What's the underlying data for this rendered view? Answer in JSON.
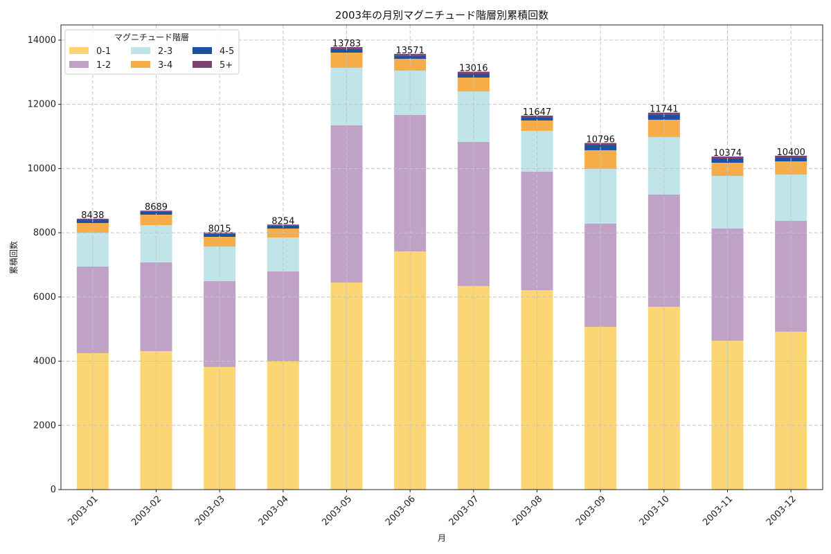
{
  "chart_data": {
    "type": "bar",
    "stacked": true,
    "title": "2003年の月別マグニチュード階層別累積回数",
    "xlabel": "月",
    "ylabel": "累積回数",
    "ylim": [
      0,
      14473
    ],
    "yticks": [
      0,
      2000,
      4000,
      6000,
      8000,
      10000,
      12000,
      14000
    ],
    "grid": true,
    "legend": {
      "title": "マグニチュード階層",
      "placement": "top-left",
      "columns": 3
    },
    "categories": [
      "2003-01",
      "2003-02",
      "2003-03",
      "2003-04",
      "2003-05",
      "2003-06",
      "2003-07",
      "2003-08",
      "2003-09",
      "2003-10",
      "2003-11",
      "2003-12"
    ],
    "series": [
      {
        "name": "0-1",
        "color": "#FCD575",
        "values": [
          4250,
          4310,
          3820,
          3990,
          6450,
          7420,
          6342,
          6212,
          5070,
          5695,
          4638,
          4918
        ]
      },
      {
        "name": "1-2",
        "color": "#C0A2C7",
        "values": [
          2695,
          2765,
          2673,
          2805,
          4896,
          4250,
          4486,
          3689,
          3213,
          3494,
          3494,
          3451
        ]
      },
      {
        "name": "2-3",
        "color": "#C1E4E9",
        "values": [
          1058,
          1165,
          1078,
          1057,
          1791,
          1380,
          1575,
          1272,
          1704,
          1791,
          1639,
          1445
        ]
      },
      {
        "name": "3-4",
        "color": "#F6AD49",
        "values": [
          300,
          323,
          302,
          280,
          474,
          367,
          431,
          324,
          583,
          539,
          410,
          410
        ]
      },
      {
        "name": "4-5",
        "color": "#1E50A2",
        "values": [
          107,
          93,
          93,
          93,
          114,
          93,
          108,
          86,
          150,
          151,
          130,
          108
        ]
      },
      {
        "name": "5+",
        "color": "#7A4171",
        "values": [
          28,
          33,
          49,
          29,
          58,
          61,
          74,
          64,
          76,
          71,
          63,
          68
        ]
      }
    ],
    "totals": [
      8438,
      8689,
      8015,
      8254,
      13783,
      13571,
      13016,
      11647,
      10796,
      11741,
      10374,
      10400
    ]
  }
}
